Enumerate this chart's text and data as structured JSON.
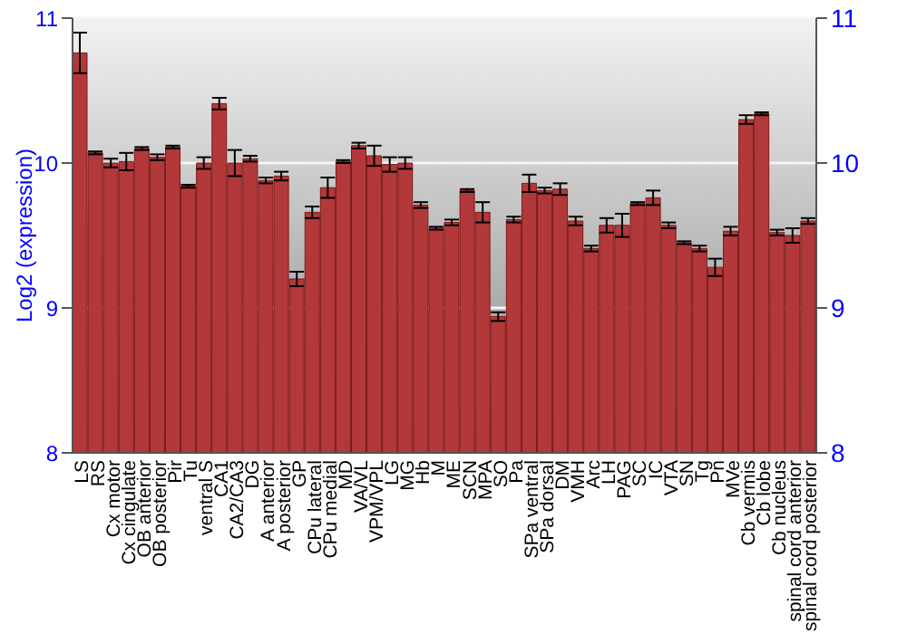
{
  "chart_data": {
    "type": "bar",
    "ylabel": "Log2 (expression)",
    "categories": [
      "LS",
      "RS",
      "Cx motor",
      "Cx cingulate",
      "OB anterior",
      "OB posterior",
      "Pir",
      "Tu",
      "ventral S",
      "CA1",
      "CA2/CA3",
      "DG",
      "A anterior",
      "A posterior",
      "GP",
      "CPu lateral",
      "CPu medial",
      "MD",
      "VA/VL",
      "VPM/VPL",
      "LG",
      "MG",
      "Hb",
      "M",
      "ME",
      "SCN",
      "MPA",
      "SO",
      "Pa",
      "SPa ventral",
      "SPa dorsal",
      "DM",
      "VMH",
      "Arc",
      "LH",
      "PAG",
      "SC",
      "IC",
      "VTA",
      "SN",
      "Tg",
      "Pn",
      "MVe",
      "Cb vermis",
      "Cb lobe",
      "Cb nucleus",
      "spinal cord anterior",
      "spinal cord posterior"
    ],
    "series": [
      {
        "color": "#b3383a",
        "values": [
          10.76,
          10.07,
          10.0,
          10.01,
          10.1,
          10.04,
          10.11,
          9.84,
          10.0,
          10.41,
          10.0,
          10.03,
          9.88,
          9.91,
          9.2,
          9.66,
          9.83,
          10.01,
          10.12,
          10.05,
          9.99,
          10.0,
          9.71,
          9.55,
          9.59,
          9.81,
          9.66,
          8.94,
          9.61,
          9.86,
          9.81,
          9.82,
          9.6,
          9.41,
          9.57,
          9.57,
          9.72,
          9.76,
          9.57,
          9.45,
          9.41,
          9.28,
          9.53,
          10.3,
          10.34,
          9.52,
          9.5,
          9.6
        ],
        "errors": [
          0.14,
          0.01,
          0.03,
          0.06,
          0.01,
          0.02,
          0.01,
          0.01,
          0.04,
          0.04,
          0.09,
          0.02,
          0.02,
          0.03,
          0.05,
          0.04,
          0.07,
          0.01,
          0.02,
          0.07,
          0.05,
          0.04,
          0.02,
          0.01,
          0.02,
          0.01,
          0.07,
          0.03,
          0.02,
          0.06,
          0.02,
          0.04,
          0.03,
          0.02,
          0.05,
          0.08,
          0.01,
          0.05,
          0.02,
          0.01,
          0.02,
          0.06,
          0.03,
          0.03,
          0.01,
          0.02,
          0.05,
          0.02
        ]
      }
    ],
    "ylim": [
      8,
      11
    ],
    "yticks": [
      8,
      9,
      10,
      11
    ],
    "y2lim": [
      8,
      11
    ],
    "y2ticks": [
      8,
      9,
      10,
      11
    ],
    "grid": "y"
  }
}
